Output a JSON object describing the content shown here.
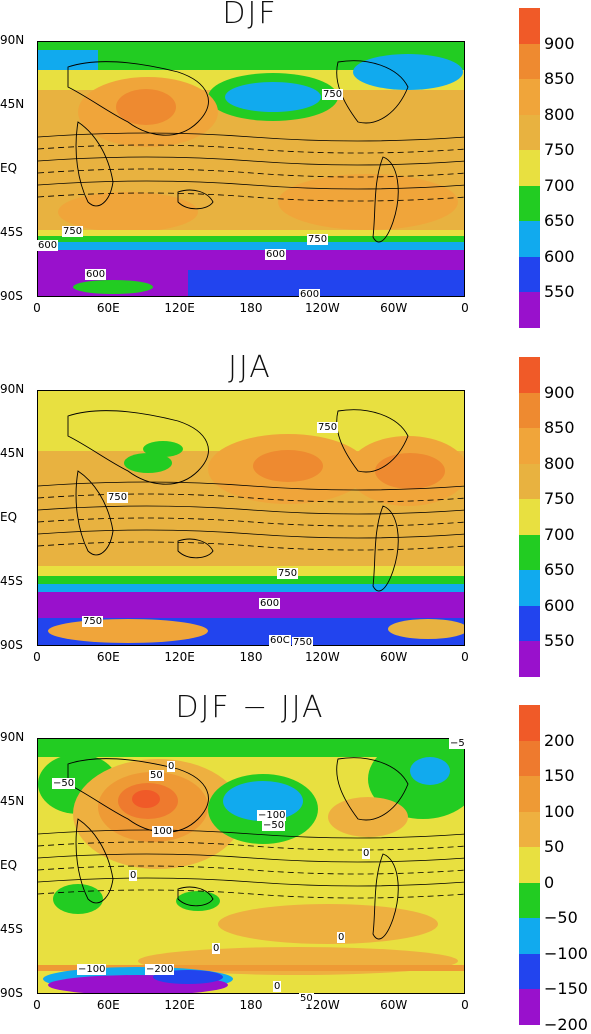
{
  "chart_data": [
    {
      "type": "heatmap",
      "title": "DJF",
      "yticks": [
        "90N",
        "45N",
        "EQ",
        "45S",
        "90S"
      ],
      "xticks": [
        "0",
        "60E",
        "120E",
        "180",
        "120W",
        "60W",
        "0"
      ],
      "colorbar": {
        "labels": [
          "900",
          "850",
          "800",
          "750",
          "700",
          "650",
          "600",
          "550"
        ],
        "colors": [
          "#f05a28",
          "#ee8a30",
          "#f0a53a",
          "#e8b240",
          "#e8e040",
          "#22cc22",
          "#11aaee",
          "#2244ee",
          "#9911cc"
        ]
      },
      "contour_labels": [
        "750",
        "750",
        "750",
        "600",
        "600",
        "600",
        "600"
      ]
    },
    {
      "type": "heatmap",
      "title": "JJA",
      "yticks": [
        "90N",
        "45N",
        "EQ",
        "45S",
        "90S"
      ],
      "xticks": [
        "0",
        "60E",
        "120E",
        "180",
        "120W",
        "60W",
        "0"
      ],
      "colorbar": {
        "labels": [
          "900",
          "850",
          "800",
          "750",
          "700",
          "650",
          "600",
          "550"
        ],
        "colors": [
          "#f05a28",
          "#ee8a30",
          "#f0a53a",
          "#e8b240",
          "#e8e040",
          "#22cc22",
          "#11aaee",
          "#2244ee",
          "#9911cc"
        ]
      },
      "contour_labels": [
        "750",
        "750",
        "750",
        "600",
        "750",
        "60C",
        "750"
      ]
    },
    {
      "type": "heatmap",
      "title": "DJF − JJA",
      "yticks": [
        "90N",
        "45N",
        "EQ",
        "45S",
        "90S"
      ],
      "xticks": [
        "0",
        "60E",
        "120E",
        "180",
        "120W",
        "60W",
        "0"
      ],
      "colorbar": {
        "labels": [
          "200",
          "150",
          "100",
          "50",
          "0",
          "−50",
          "−100",
          "−150",
          "−200"
        ],
        "colors": [
          "#f05a28",
          "#ee7a2e",
          "#ee9a35",
          "#eeb040",
          "#e8e040",
          "#22cc22",
          "#11aaee",
          "#2244ee",
          "#9911cc"
        ]
      },
      "contour_labels": [
        "−50",
        "50",
        "0",
        "100",
        "0",
        "−100",
        "−50",
        "0",
        "0",
        "0",
        "−100",
        "−200",
        "0",
        "50",
        "−5"
      ]
    }
  ]
}
